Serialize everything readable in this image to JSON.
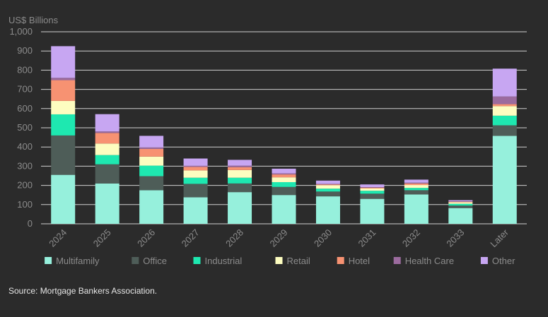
{
  "chart_data": {
    "type": "bar",
    "stacked": true,
    "ylabel": "US$ Billions",
    "ylim": [
      0,
      1000
    ],
    "yticks": [
      "0",
      "100",
      "200",
      "300",
      "400",
      "500",
      "600",
      "700",
      "800",
      "900",
      "1,000"
    ],
    "grid": true,
    "legend_position": "bottom",
    "categories": [
      "2024",
      "2025",
      "2026",
      "2027",
      "2028",
      "2029",
      "2030",
      "2031",
      "2032",
      "2033",
      "Later"
    ],
    "series": [
      {
        "name": "Multifamily",
        "color": "#96f0dc",
        "values": [
          255,
          210,
          175,
          138,
          165,
          150,
          143,
          130,
          153,
          82,
          458
        ]
      },
      {
        "name": "Office",
        "color": "#4e5d58",
        "values": [
          205,
          100,
          73,
          70,
          45,
          42,
          25,
          27,
          22,
          13,
          55
        ]
      },
      {
        "name": "Industrial",
        "color": "#1ee8b0",
        "values": [
          110,
          48,
          55,
          32,
          30,
          25,
          15,
          15,
          12,
          9,
          50
        ]
      },
      {
        "name": "Retail",
        "color": "#fdfdc0",
        "values": [
          70,
          60,
          47,
          38,
          40,
          25,
          18,
          12,
          15,
          8,
          50
        ]
      },
      {
        "name": "Hotel",
        "color": "#f79272",
        "values": [
          108,
          55,
          40,
          18,
          15,
          15,
          4,
          4,
          8,
          3,
          10
        ]
      },
      {
        "name": "Health Care",
        "color": "#9b6b9e",
        "values": [
          12,
          8,
          8,
          6,
          8,
          6,
          3,
          3,
          4,
          2,
          40
        ]
      },
      {
        "name": "Other",
        "color": "#c7a6f2",
        "values": [
          165,
          90,
          60,
          38,
          30,
          24,
          17,
          14,
          16,
          6,
          145
        ]
      }
    ]
  },
  "source": "Source: Mortgage Bankers Association."
}
